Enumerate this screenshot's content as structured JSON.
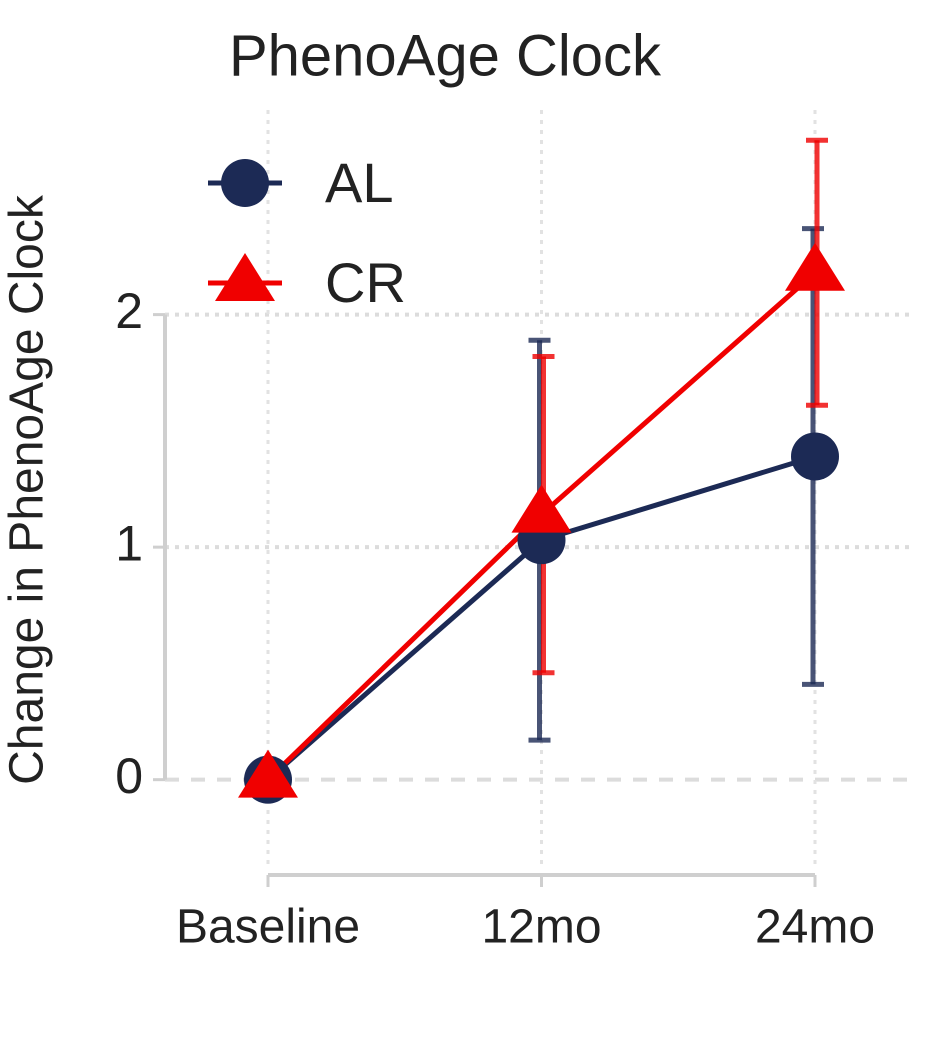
{
  "chart_data": {
    "type": "line",
    "title": "PhenoAge Clock",
    "y_label": "Change in PhenoAge Clock",
    "categories": [
      "Baseline",
      "12mo",
      "24mo"
    ],
    "series": [
      {
        "name": "AL",
        "color": "#1c2a55",
        "marker": "circle",
        "values": [
          0,
          1.03,
          1.39
        ],
        "errors": [
          null,
          0.86,
          0.98
        ]
      },
      {
        "name": "CR",
        "color": "#f00000",
        "marker": "triangle",
        "values": [
          0,
          1.14,
          2.18
        ],
        "errors": [
          null,
          0.68,
          0.57
        ]
      }
    ],
    "ylim": [
      -0.41,
      2.88
    ],
    "yticks": [
      0,
      1,
      2
    ],
    "grid": true,
    "legend": "upper left"
  }
}
